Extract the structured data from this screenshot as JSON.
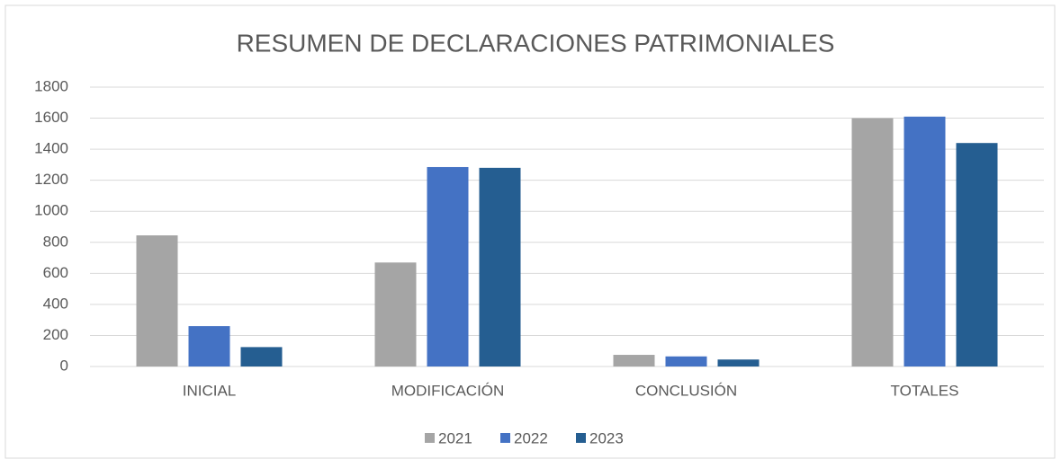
{
  "chart_data": {
    "type": "bar",
    "title": "RESUMEN DE DECLARACIONES PATRIMONIALES",
    "categories": [
      "INICIAL",
      "MODIFICACIÓN",
      "CONCLUSIÓN",
      "TOTALES"
    ],
    "series": [
      {
        "name": "2021",
        "color": "#a5a5a5",
        "values": [
          845,
          670,
          75,
          1600
        ]
      },
      {
        "name": "2022",
        "color": "#4472c4",
        "values": [
          260,
          1285,
          65,
          1610
        ]
      },
      {
        "name": "2023",
        "color": "#255e91",
        "values": [
          125,
          1280,
          45,
          1440
        ]
      }
    ],
    "ylim": [
      0,
      1800
    ],
    "yticks": [
      0,
      200,
      400,
      600,
      800,
      1000,
      1200,
      1400,
      1600,
      1800
    ],
    "grid": true,
    "legend": "bottom"
  }
}
